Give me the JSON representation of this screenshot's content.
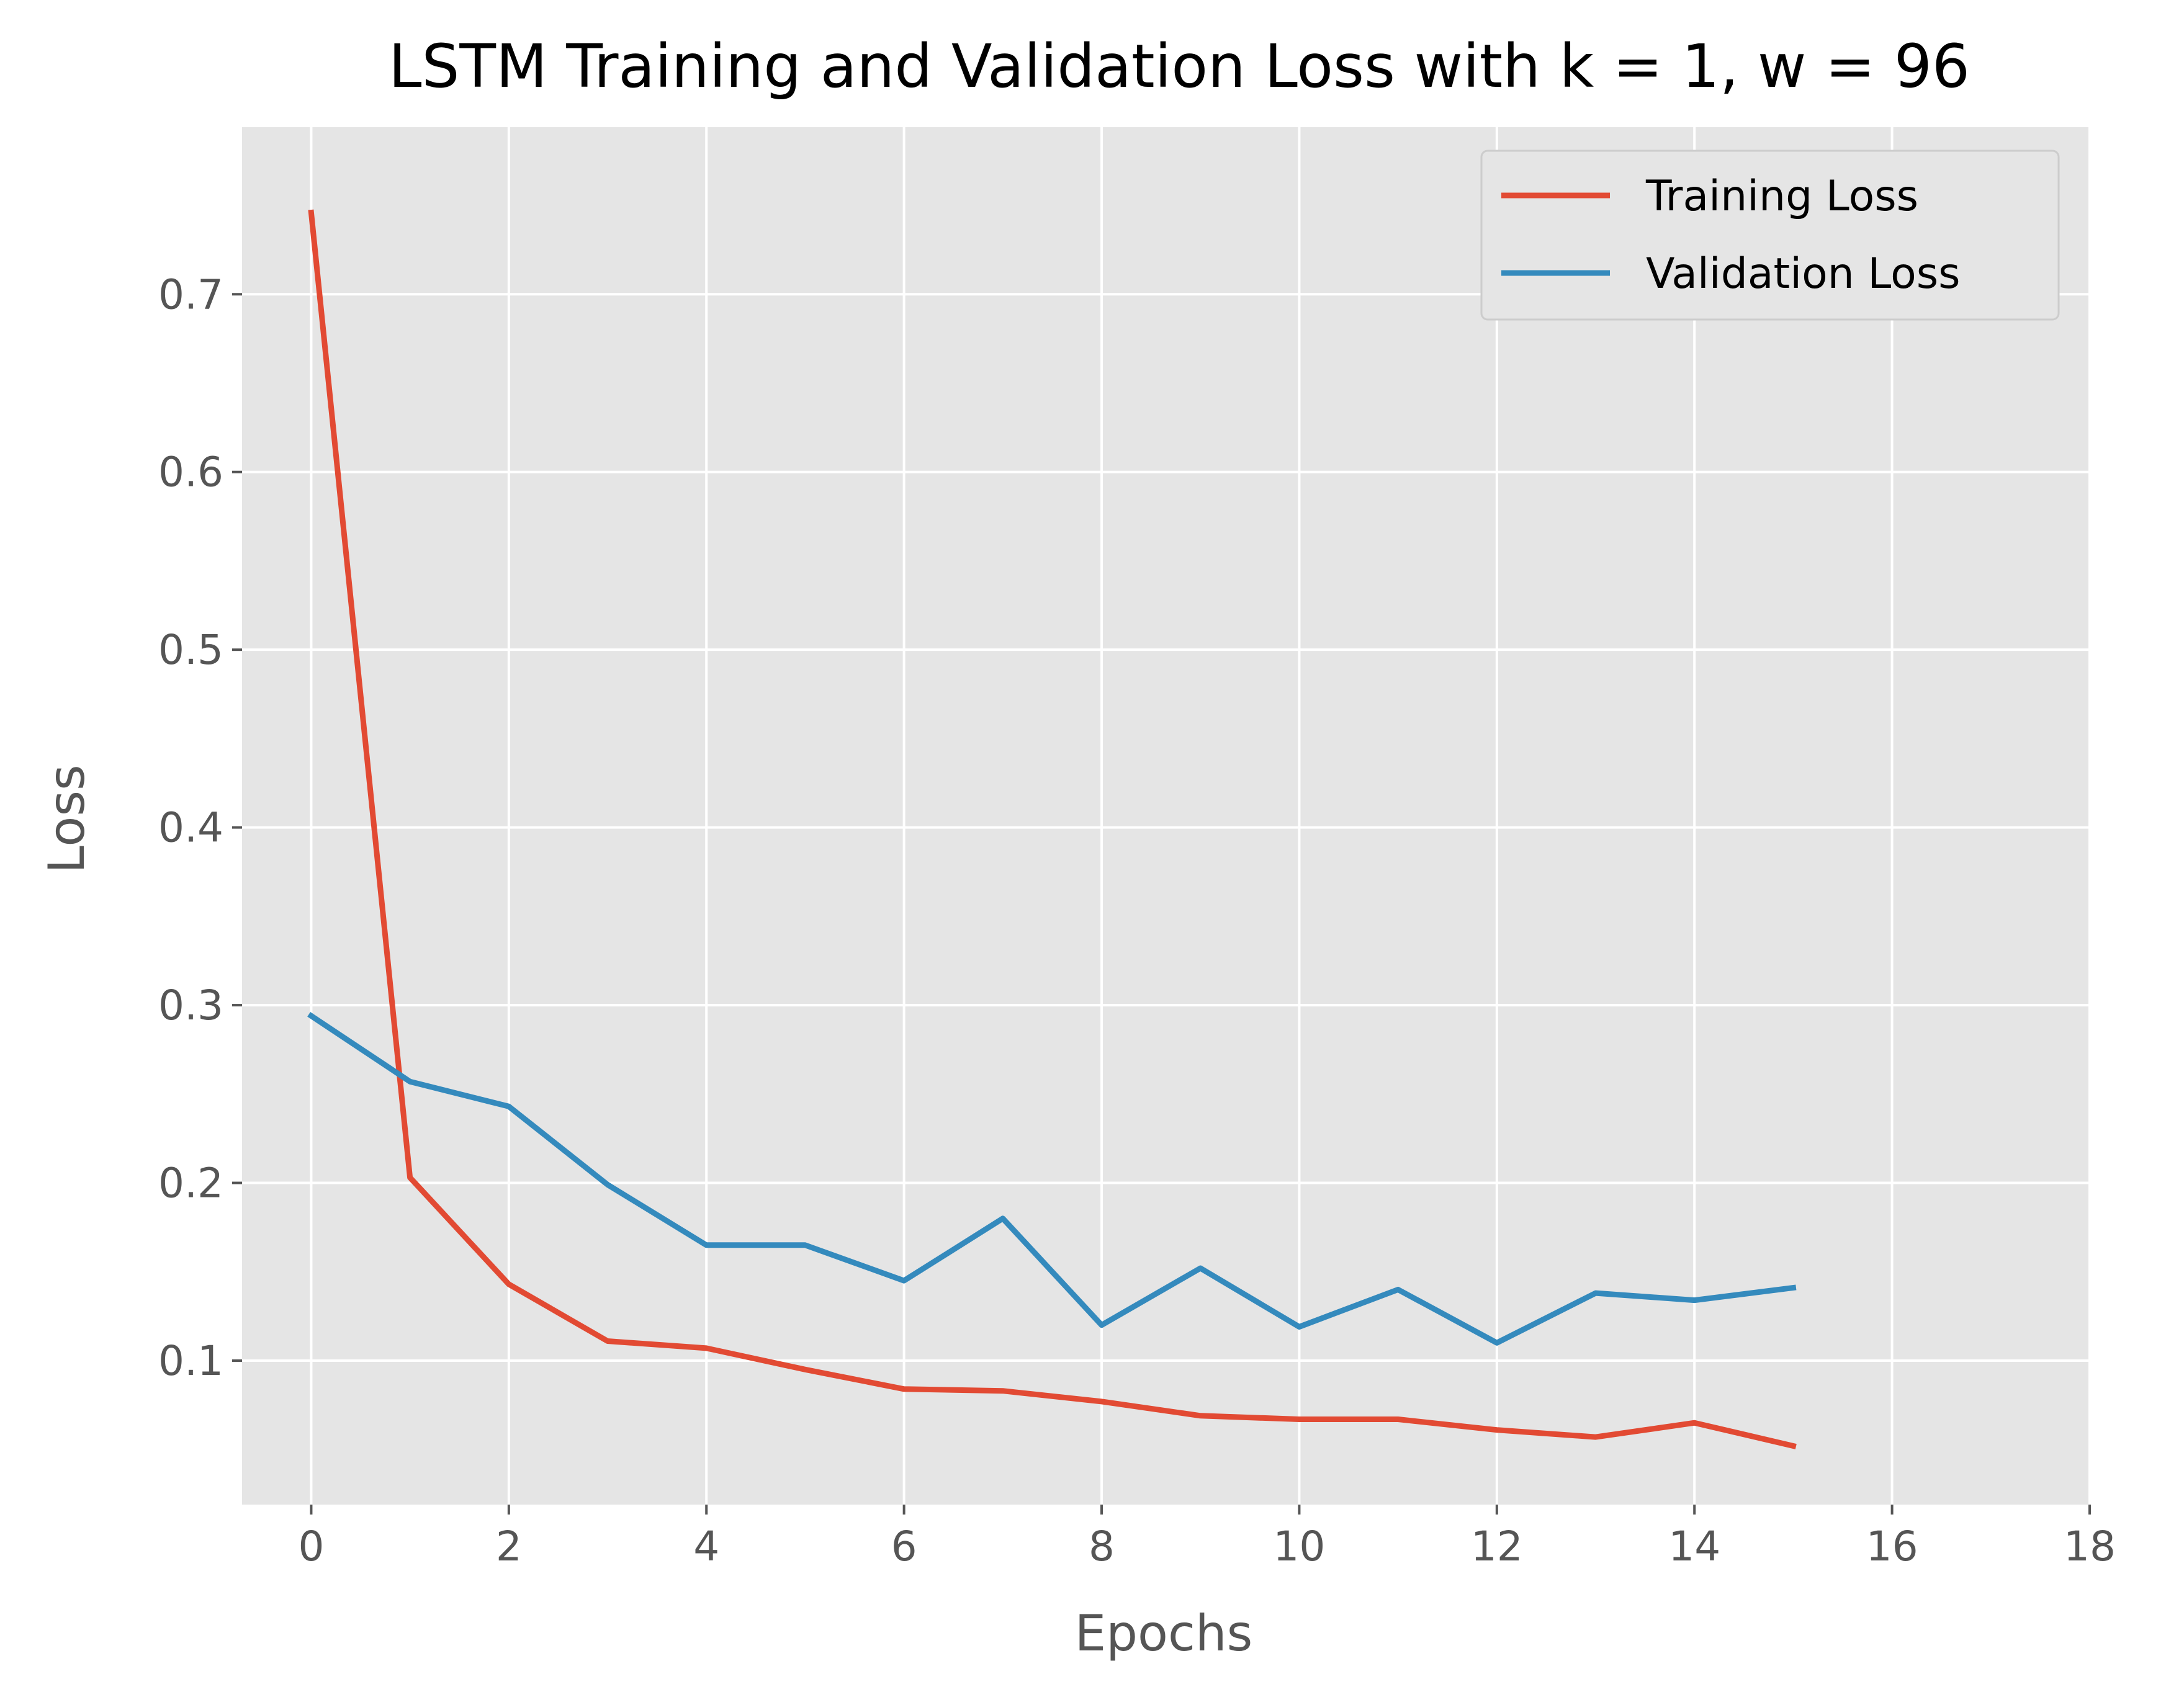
{
  "chart_data": {
    "type": "line",
    "title": "LSTM Training and Validation Loss with k = 1, w = 96",
    "xlabel": "Epochs",
    "ylabel": "Loss",
    "xlim": [
      -0.7,
      18
    ],
    "ylim": [
      0.019,
      0.794
    ],
    "xticks": [
      0,
      2,
      4,
      6,
      8,
      10,
      12,
      14,
      16,
      18
    ],
    "xtick_labels": [
      "0",
      "2",
      "4",
      "6",
      "8",
      "10",
      "12",
      "14",
      "16",
      "18"
    ],
    "yticks": [
      0.1,
      0.2,
      0.3,
      0.4,
      0.5,
      0.6,
      0.7
    ],
    "ytick_labels": [
      "0.1",
      "0.2",
      "0.3",
      "0.4",
      "0.5",
      "0.6",
      "0.7"
    ],
    "grid": true,
    "legend_position": "top-right",
    "x": [
      0,
      1,
      2,
      3,
      4,
      5,
      6,
      7,
      8,
      9,
      10,
      11,
      12,
      13,
      14,
      15
    ],
    "series": [
      {
        "name": "Training Loss",
        "color": "#E24A33",
        "values": [
          0.746,
          0.203,
          0.143,
          0.111,
          0.107,
          0.095,
          0.084,
          0.083,
          0.077,
          0.069,
          0.067,
          0.067,
          0.061,
          0.057,
          0.065,
          0.052
        ]
      },
      {
        "name": "Validation Loss",
        "color": "#348ABD",
        "values": [
          0.294,
          0.257,
          0.243,
          0.199,
          0.165,
          0.165,
          0.145,
          0.18,
          0.12,
          0.152,
          0.119,
          0.14,
          0.11,
          0.138,
          0.134,
          0.141
        ]
      }
    ],
    "colors": {
      "plot_background": "#E5E5E5",
      "grid": "#FFFFFF",
      "text": "#555555"
    }
  }
}
